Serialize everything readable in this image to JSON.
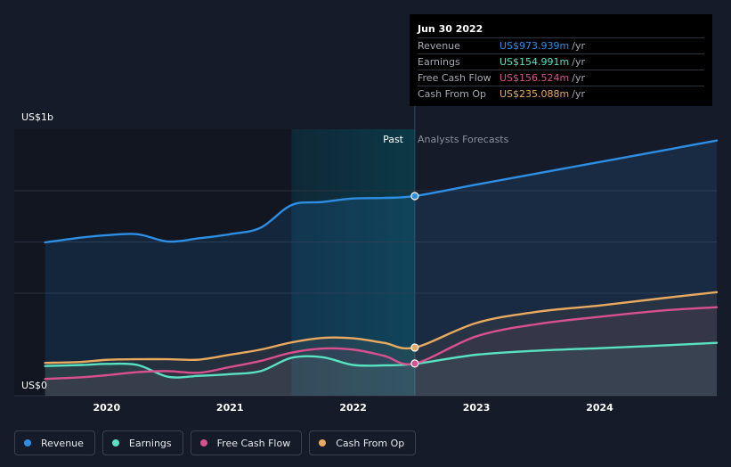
{
  "chart_data": {
    "type": "area",
    "ylabel_top": "US$1b",
    "ylabel_bottom": "US$0",
    "ylim": [
      0,
      1300
    ],
    "x_tick_labels": [
      "2020",
      "2021",
      "2022",
      "2023",
      "2024"
    ],
    "x_ticks": [
      2020.0,
      2021.0,
      2022.0,
      2023.0,
      2024.0
    ],
    "xlim": [
      2019.25,
      2024.95
    ],
    "divider_x": 2022.5,
    "highlight_range": [
      2021.5,
      2022.5
    ],
    "section_past": "Past",
    "section_forecast": "Analysts Forecasts",
    "series": [
      {
        "name": "Revenue",
        "key": "revenue",
        "color": "#2d8ee3",
        "x": [
          2019.5,
          2019.8,
          2020.0,
          2020.25,
          2020.5,
          2020.75,
          2021.0,
          2021.25,
          2021.5,
          2021.75,
          2022.0,
          2022.25,
          2022.5,
          2023.0,
          2023.5,
          2024.0,
          2024.5,
          2024.95
        ],
        "values": [
          748,
          772,
          783,
          788,
          752,
          768,
          788,
          820,
          930,
          945,
          962,
          965,
          974,
          1030,
          1085,
          1140,
          1195,
          1245
        ]
      },
      {
        "name": "Earnings",
        "key": "earnings",
        "color": "#58e2c2",
        "x": [
          2019.5,
          2019.8,
          2020.0,
          2020.25,
          2020.5,
          2020.75,
          2021.0,
          2021.25,
          2021.5,
          2021.75,
          2022.0,
          2022.25,
          2022.5,
          2023.0,
          2023.5,
          2024.0,
          2024.5,
          2024.95
        ],
        "values": [
          145,
          150,
          155,
          150,
          92,
          97,
          105,
          120,
          185,
          188,
          150,
          148,
          155,
          200,
          220,
          232,
          245,
          258
        ]
      },
      {
        "name": "Free Cash Flow",
        "key": "fcf",
        "color": "#d9508f",
        "x": [
          2019.5,
          2019.8,
          2020.0,
          2020.25,
          2020.5,
          2020.75,
          2021.0,
          2021.25,
          2021.5,
          2021.75,
          2022.0,
          2022.25,
          2022.5,
          2023.0,
          2023.5,
          2024.0,
          2024.5,
          2024.95
        ],
        "values": [
          82,
          90,
          100,
          115,
          120,
          112,
          140,
          170,
          210,
          230,
          225,
          195,
          157,
          290,
          350,
          385,
          415,
          432
        ]
      },
      {
        "name": "Cash From Op",
        "key": "cfo",
        "color": "#e9aa5f",
        "x": [
          2019.5,
          2019.8,
          2020.0,
          2020.25,
          2020.5,
          2020.75,
          2021.0,
          2021.25,
          2021.5,
          2021.75,
          2022.0,
          2022.25,
          2022.5,
          2023.0,
          2023.5,
          2024.0,
          2024.5,
          2024.95
        ],
        "values": [
          160,
          165,
          175,
          178,
          178,
          176,
          200,
          225,
          260,
          282,
          280,
          258,
          235,
          355,
          410,
          440,
          475,
          505
        ]
      }
    ]
  },
  "tooltip": {
    "date": "Jun 30 2022",
    "rows": [
      {
        "label": "Revenue",
        "value": "US$973.939m",
        "unit": "/yr",
        "color": "#2d8ee3"
      },
      {
        "label": "Earnings",
        "value": "US$154.991m",
        "unit": "/yr",
        "color": "#58e2c2"
      },
      {
        "label": "Free Cash Flow",
        "value": "US$156.524m",
        "unit": "/yr",
        "color": "#d9508f"
      },
      {
        "label": "Cash From Op",
        "value": "US$235.088m",
        "unit": "/yr",
        "color": "#e9aa5f"
      }
    ]
  },
  "legend": {
    "items": [
      {
        "label": "Revenue",
        "color": "#2d8ee3"
      },
      {
        "label": "Earnings",
        "color": "#58e2c2"
      },
      {
        "label": "Free Cash Flow",
        "color": "#d9508f"
      },
      {
        "label": "Cash From Op",
        "color": "#e9aa5f"
      }
    ]
  }
}
